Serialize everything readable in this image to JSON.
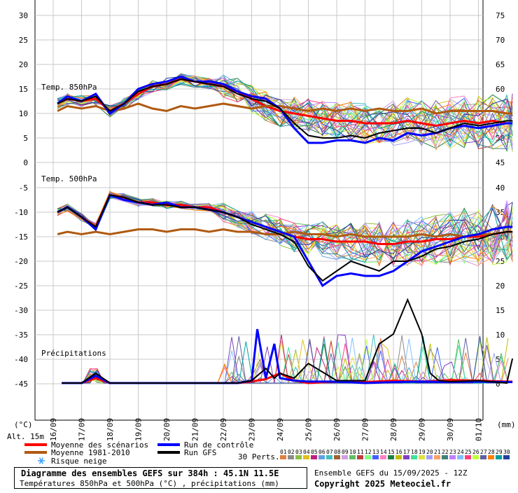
{
  "chart_data": {
    "type": "line",
    "title": "Diagramme des ensembles GEFS sur 384h : 45.1N 11.5E",
    "subtitle": "Températures 850hPa et 500hPa (°C) , précipitations (mm)",
    "dates": [
      "16/09",
      "17/09",
      "18/09",
      "19/09",
      "20/09",
      "21/09",
      "22/09",
      "23/09",
      "24/09",
      "25/09",
      "26/09",
      "27/09",
      "28/09",
      "29/09",
      "30/09",
      "01/10"
    ],
    "left_axis_unit": "(°C)",
    "right_axis_unit": "(mm)",
    "altitude_label": "Alt. 15m",
    "panels": [
      {
        "label": "Temp. 850hPa",
        "ylim": [
          0,
          30
        ],
        "ticks": [
          0,
          5,
          10,
          15,
          20,
          25,
          30
        ],
        "right_ticks": [
          45,
          50,
          55,
          60,
          65,
          70,
          75
        ],
        "series": [
          {
            "name": "Moyenne des scénarios",
            "color": "#ff0000",
            "x": [
              0.15,
              0.5,
              1,
              1.5,
              2,
              2.5,
              3,
              3.5,
              4,
              4.5,
              5,
              5.5,
              6,
              6.5,
              7,
              7.5,
              8,
              8.5,
              9,
              9.5,
              10,
              10.5,
              11,
              11.5,
              12,
              12.5,
              13,
              13.5,
              14,
              14.5,
              15,
              15.5,
              16,
              16.2
            ],
            "y": [
              12,
              13,
              12.5,
              13,
              10.5,
              12,
              14,
              15.5,
              16,
              17,
              16.5,
              16,
              15.5,
              14.5,
              13,
              11.5,
              10.5,
              10,
              9.5,
              9,
              8.5,
              8.5,
              8,
              8,
              8,
              8.5,
              8,
              7.5,
              8,
              8.5,
              8,
              8.5,
              8,
              8
            ]
          },
          {
            "name": "Moyenne 1981-2010",
            "color": "#b05a10",
            "x": [
              0.15,
              0.5,
              1,
              1.5,
              2,
              2.5,
              3,
              3.5,
              4,
              4.5,
              5,
              5.5,
              6,
              6.5,
              7,
              7.5,
              8,
              8.5,
              9,
              9.5,
              10,
              10.5,
              11,
              11.5,
              12,
              12.5,
              13,
              13.5,
              14,
              14.5,
              15,
              15.5,
              16,
              16.2
            ],
            "y": [
              10.5,
              11.5,
              11,
              11.5,
              10.5,
              11,
              12,
              11,
              10.5,
              11.5,
              11,
              11.5,
              12,
              11.5,
              11,
              11.5,
              11.5,
              11,
              10.5,
              11,
              10.5,
              11,
              10.5,
              11,
              10.5,
              10.5,
              11,
              10,
              10.5,
              10.5,
              10.5,
              10.5,
              10,
              10
            ]
          },
          {
            "name": "Run de contrôle",
            "color": "#0000ff",
            "x": [
              0.15,
              0.5,
              1,
              1.5,
              2,
              2.5,
              3,
              3.5,
              4,
              4.5,
              5,
              5.5,
              6,
              6.5,
              7,
              7.5,
              8,
              8.5,
              9,
              9.5,
              10,
              10.5,
              11,
              11.5,
              12,
              12.5,
              13,
              13.5,
              14,
              14.5,
              15,
              15.5,
              16,
              16.2
            ],
            "y": [
              12,
              13.5,
              12.5,
              14,
              10,
              12,
              15,
              16,
              16.5,
              17.5,
              16.5,
              16.5,
              16,
              14.5,
              13.5,
              13,
              11,
              7,
              4,
              4,
              4.5,
              4.5,
              4,
              5,
              4.5,
              6,
              5.5,
              6,
              7,
              7.5,
              7,
              7.5,
              8,
              8
            ]
          },
          {
            "name": "Run GFS",
            "color": "#000000",
            "x": [
              0.15,
              0.5,
              1,
              1.5,
              2,
              2.5,
              3,
              3.5,
              4,
              4.5,
              5,
              5.5,
              6,
              6.5,
              7,
              7.5,
              8,
              8.5,
              9,
              9.5,
              10,
              10.5,
              11,
              11.5,
              12,
              12.5,
              13,
              13.5,
              14,
              14.5,
              15,
              15.5,
              16,
              16.2
            ],
            "y": [
              12,
              13,
              12.5,
              13.5,
              10.5,
              12,
              14.5,
              15.5,
              16,
              17,
              16.5,
              16,
              15.5,
              14,
              13,
              12.5,
              11,
              8,
              5.5,
              5,
              5,
              5.5,
              5,
              6,
              6.5,
              7,
              7,
              6,
              7,
              8,
              7.5,
              8,
              8.5,
              8.5
            ]
          }
        ]
      },
      {
        "label": "Temp. 500hPa",
        "ylim": [
          -25,
          -5
        ],
        "ticks": [
          -25,
          -20,
          -15,
          -10,
          -5
        ],
        "series": [
          {
            "name": "Moyenne des scénarios",
            "color": "#ff0000",
            "x": [
              0.15,
              0.5,
              1,
              1.5,
              2,
              2.5,
              3,
              3.5,
              4,
              4.5,
              5,
              5.5,
              6,
              6.5,
              7,
              7.5,
              8,
              8.5,
              9,
              9.5,
              10,
              10.5,
              11,
              11.5,
              12,
              12.5,
              13,
              13.5,
              14,
              14.5,
              15,
              15.5,
              16,
              16.2
            ],
            "y": [
              -10,
              -9,
              -11,
              -13,
              -6.5,
              -7,
              -8,
              -8,
              -8.5,
              -8.5,
              -9,
              -9,
              -10,
              -11,
              -12,
              -13,
              -14,
              -15,
              -15.5,
              -15.5,
              -16,
              -16,
              -16,
              -16.5,
              -16.5,
              -16,
              -16,
              -15.5,
              -15.5,
              -15,
              -15,
              -14.5,
              -14,
              -14
            ]
          },
          {
            "name": "Moyenne 1981-2010",
            "color": "#b05a10",
            "x": [
              0.15,
              0.5,
              1,
              1.5,
              2,
              2.5,
              3,
              3.5,
              4,
              4.5,
              5,
              5.5,
              6,
              6.5,
              7,
              7.5,
              8,
              8.5,
              9,
              9.5,
              10,
              10.5,
              11,
              11.5,
              12,
              12.5,
              13,
              13.5,
              14,
              14.5,
              15,
              15.5,
              16,
              16.2
            ],
            "y": [
              -14.5,
              -14,
              -14.5,
              -14,
              -14.5,
              -14,
              -13.5,
              -13.5,
              -14,
              -13.5,
              -13.5,
              -14,
              -13.5,
              -14,
              -14,
              -14.5,
              -14.5,
              -14,
              -14.5,
              -14.5,
              -15,
              -14.5,
              -15,
              -15,
              -15,
              -15,
              -14.5,
              -15,
              -14.5,
              -15,
              -14.5,
              -14.5,
              -14,
              -14
            ]
          },
          {
            "name": "Run de contrôle",
            "color": "#0000ff",
            "x": [
              0.15,
              0.5,
              1,
              1.5,
              2,
              2.5,
              3,
              3.5,
              4,
              4.5,
              5,
              5.5,
              6,
              6.5,
              7,
              7.5,
              8,
              8.5,
              9,
              9.5,
              10,
              10.5,
              11,
              11.5,
              12,
              12.5,
              13,
              13.5,
              14,
              14.5,
              15,
              15.5,
              16,
              16.2
            ],
            "y": [
              -10,
              -9,
              -11,
              -13.5,
              -6.5,
              -7.5,
              -8,
              -8.5,
              -8,
              -9,
              -9,
              -9.5,
              -10,
              -11,
              -12,
              -13,
              -14,
              -15,
              -20,
              -25,
              -23,
              -22.5,
              -23,
              -23,
              -22,
              -20,
              -18,
              -17,
              -16,
              -15,
              -14.5,
              -13.5,
              -13,
              -13
            ]
          },
          {
            "name": "Run GFS",
            "color": "#000000",
            "x": [
              0.15,
              0.5,
              1,
              1.5,
              2,
              2.5,
              3,
              3.5,
              4,
              4.5,
              5,
              5.5,
              6,
              6.5,
              7,
              7.5,
              8,
              8.5,
              9,
              9.5,
              10,
              10.5,
              11,
              11.5,
              12,
              12.5,
              13,
              13.5,
              14,
              14.5,
              15,
              15.5,
              16,
              16.2
            ],
            "y": [
              -10,
              -9,
              -11,
              -13,
              -6.5,
              -7,
              -8,
              -8.5,
              -8.5,
              -9,
              -9,
              -9.5,
              -10,
              -11,
              -12.5,
              -13.5,
              -14.5,
              -16,
              -21,
              -24,
              -22,
              -20,
              -21,
              -22,
              -20,
              -20,
              -19,
              -17.5,
              -17,
              -16,
              -15.5,
              -14.5,
              -14,
              -14
            ]
          }
        ]
      },
      {
        "label": "Précipitations",
        "ylim": [
          0,
          25
        ],
        "ticks": [
          0,
          5,
          10,
          15,
          20,
          25
        ],
        "series": [
          {
            "name": "Moyenne des scénarios",
            "color": "#ff0000",
            "x": [
              0.3,
              1,
              1.5,
              2,
              3,
              4,
              5,
              6,
              6.5,
              7,
              7.5,
              8,
              8.5,
              9,
              10,
              11,
              12,
              13,
              14,
              15,
              16,
              16.2
            ],
            "y": [
              0,
              0,
              1,
              0,
              0,
              0,
              0,
              0,
              0,
              0.3,
              0.8,
              2,
              0.5,
              0,
              0.3,
              0.2,
              0.5,
              0.3,
              0.6,
              0.5,
              0.3,
              0.3
            ]
          },
          {
            "name": "Run de contrôle",
            "color": "#0000ff",
            "x": [
              0.3,
              1,
              1.5,
              2,
              3,
              4,
              5,
              6,
              6.5,
              7,
              7.2,
              7.5,
              7.8,
              8,
              8.5,
              9,
              10,
              11,
              12,
              13,
              14,
              15,
              16,
              16.2
            ],
            "y": [
              0,
              0,
              1.5,
              0,
              0,
              0,
              0,
              0,
              0,
              0.5,
              11,
              1,
              8,
              1,
              0.5,
              0.3,
              0.3,
              0,
              0.2,
              0.3,
              0.2,
              0.3,
              0.2,
              0.2
            ]
          },
          {
            "name": "Run GFS",
            "color": "#000000",
            "x": [
              0.3,
              1,
              1.5,
              2,
              3,
              4,
              5,
              6,
              6.5,
              7,
              7.5,
              7.8,
              8,
              8.5,
              9,
              10,
              11,
              11.5,
              12,
              12.5,
              13,
              13.3,
              13.6,
              14,
              15,
              16,
              16.2
            ],
            "y": [
              0,
              0,
              2,
              0,
              0,
              0,
              0,
              0,
              0,
              0.5,
              3,
              1,
              2,
              1,
              4,
              0.5,
              0.5,
              8,
              10,
              17,
              10,
              2,
              0.5,
              0.3,
              0.5,
              0,
              5
            ]
          }
        ]
      }
    ],
    "legend": [
      {
        "name": "Moyenne des scénarios",
        "color": "#ff0000"
      },
      {
        "name": "Moyenne 1981-2010",
        "color": "#b05a10"
      },
      {
        "name": "Run de contrôle",
        "color": "#0000ff"
      },
      {
        "name": "Run GFS",
        "color": "#000000"
      },
      {
        "name": "Risque neige",
        "color": "#3aa0ff"
      }
    ],
    "perts_label": "30 Perts.",
    "perturbations": [
      "01",
      "02",
      "03",
      "04",
      "05",
      "06",
      "07",
      "08",
      "09",
      "10",
      "11",
      "12",
      "13",
      "14",
      "15",
      "16",
      "17",
      "18",
      "19",
      "20",
      "21",
      "22",
      "23",
      "24",
      "25",
      "26",
      "27",
      "28",
      "29",
      "30"
    ],
    "pert_colors": [
      "#e08040",
      "#8c8c8c",
      "#90c040",
      "#e0c020",
      "#c02080",
      "#60a0e0",
      "#40c0c0",
      "#a06030",
      "#d0a0e0",
      "#60c060",
      "#c04040",
      "#80ff80",
      "#4060ff",
      "#ff80c0",
      "#208040",
      "#c0c000",
      "#8040c0",
      "#40e0a0",
      "#e0e040",
      "#a0a0ff",
      "#ffa060",
      "#408080",
      "#c080ff",
      "#80c0ff",
      "#ff4080",
      "#c0ff40",
      "#6060a0",
      "#ff8000",
      "#00a0a0",
      "#2040a0"
    ],
    "ensemble_info": "Ensemble GEFS du 15/09/2025 - 12Z",
    "copyright": "Copyright 2025 Meteociel.fr"
  }
}
